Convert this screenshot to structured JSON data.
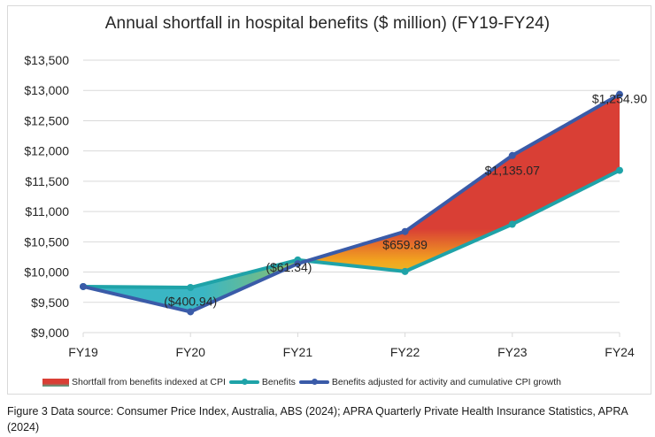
{
  "chart_data": {
    "type": "area",
    "title": "Annual shortfall in hospital benefits ($ million) (FY19-FY24)",
    "xlabel": "",
    "ylabel": "",
    "categories": [
      "FY19",
      "FY20",
      "FY21",
      "FY22",
      "FY23",
      "FY24"
    ],
    "ylim": [
      9000,
      13500
    ],
    "ytick_step": 500,
    "ytick_labels": [
      "$9,000",
      "$9,500",
      "$10,000",
      "$10,500",
      "$11,000",
      "$11,500",
      "$12,000",
      "$12,500",
      "$13,000",
      "$13,500"
    ],
    "grid": true,
    "legend_position": "bottom",
    "series": [
      {
        "name": "Shortfall from benefits indexed at CPI",
        "kind": "area-between",
        "values": [
          0,
          -400.94,
          -61.34,
          659.89,
          1135.07,
          1254.9
        ],
        "data_labels": [
          "",
          "($400.94)",
          "($61.34)",
          "$659.89",
          "$1,135.07",
          "$1,254.90"
        ]
      },
      {
        "name": "Benefits",
        "kind": "line",
        "color": "#1fa3a8",
        "values": [
          9760,
          9745,
          10200,
          10010,
          10790,
          11680
        ]
      },
      {
        "name": "Benefits adjusted for activity and cumulative CPI growth",
        "kind": "line",
        "color": "#3a5ba8",
        "values": [
          9760,
          9344.06,
          10138.66,
          10669.89,
          11925.07,
          12934.9
        ]
      }
    ]
  },
  "colors": {
    "shortfall_high": "#d93f35",
    "shortfall_mid": "#f0a020",
    "shortfall_low": "#3ab0bf",
    "benefits": "#1fa3a8",
    "adjusted": "#3a5ba8",
    "grid": "#d9d9d9"
  },
  "caption": "Figure 3 Data source: Consumer Price Index, Australia, ABS (2024); APRA Quarterly Private Health Insurance Statistics, APRA (2024)"
}
